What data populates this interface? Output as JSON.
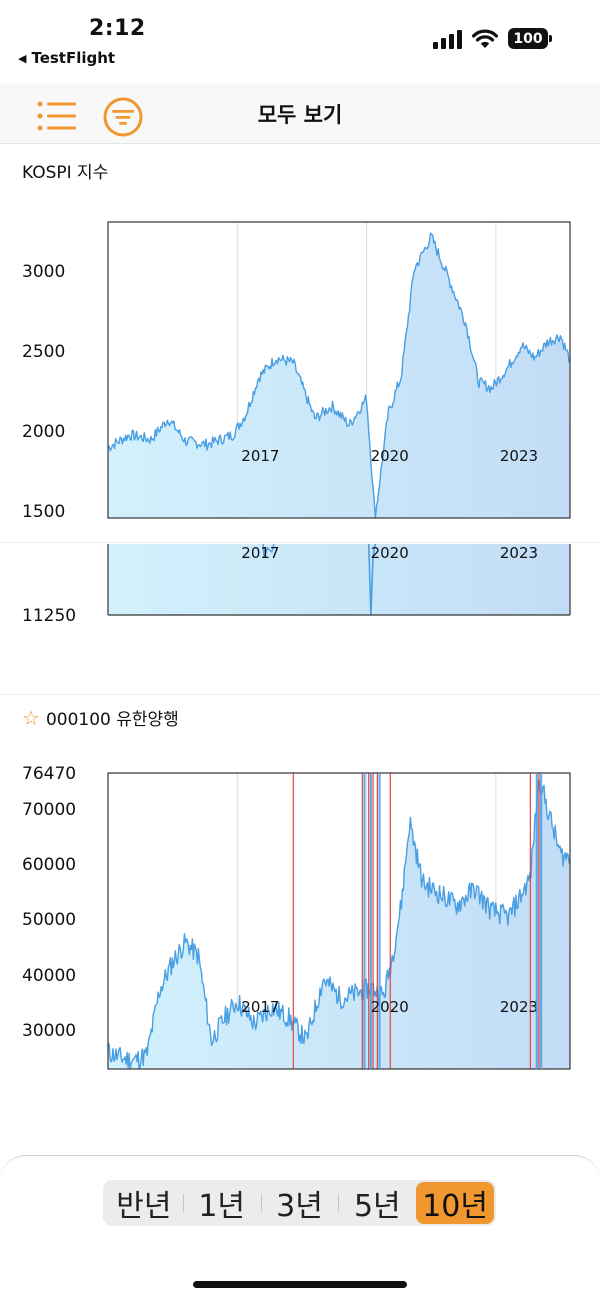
{
  "status": {
    "time": "2:12",
    "back_app": "TestFlight",
    "battery": "100"
  },
  "nav": {
    "title": "모두 보기",
    "list_icon": "list-icon",
    "filter_icon": "filter-icon"
  },
  "colors": {
    "accent": "#f0972f",
    "line": "#4a9fe3",
    "fill_start": "#d2f1fc",
    "fill_end": "#c2dcf6",
    "marker": "#e0473c"
  },
  "kospi": {
    "title": "KOSPI 지수",
    "y_labels": [
      "3000",
      "2500",
      "2000",
      "1500"
    ],
    "x_labels": [
      "2017",
      "2020",
      "2023"
    ]
  },
  "second_chart": {
    "y_labels": [
      "11250"
    ],
    "x_labels": [
      "2017",
      "2020",
      "2023"
    ]
  },
  "stock": {
    "title": "000100 유한양행",
    "y_labels": [
      "76470",
      "70000",
      "60000",
      "50000",
      "40000",
      "30000"
    ],
    "x_labels": [
      "2017",
      "2020",
      "2023"
    ]
  },
  "chart_data": [
    {
      "type": "area",
      "title": "KOSPI 지수",
      "ylim": [
        1500,
        3350
      ],
      "yticks": [
        1500,
        2000,
        2500,
        3000
      ],
      "x_tick_labels": [
        "2017",
        "2020",
        "2023"
      ],
      "x": [
        2014.0,
        2014.5,
        2015.0,
        2015.4,
        2015.8,
        2016.3,
        2016.9,
        2017.2,
        2017.5,
        2017.9,
        2018.3,
        2018.8,
        2019.2,
        2019.6,
        2020.0,
        2020.2,
        2020.5,
        2020.8,
        2021.1,
        2021.5,
        2021.9,
        2022.3,
        2022.6,
        2022.9,
        2023.3,
        2023.6,
        2023.9,
        2024.2,
        2024.5,
        2024.7
      ],
      "y": [
        1940,
        2020,
        1990,
        2120,
        1980,
        1960,
        2020,
        2150,
        2380,
        2500,
        2470,
        2120,
        2200,
        2080,
        2250,
        1500,
        2150,
        2380,
        3050,
        3260,
        3000,
        2720,
        2350,
        2310,
        2450,
        2580,
        2500,
        2600,
        2640,
        2500
      ]
    },
    {
      "type": "area",
      "yticks": [
        11250
      ],
      "x_tick_labels": [
        "2017",
        "2020",
        "2023"
      ]
    },
    {
      "type": "area",
      "title": "000100 유한양행",
      "ylim": [
        24000,
        76470
      ],
      "yticks": [
        30000,
        40000,
        50000,
        60000,
        70000,
        76470
      ],
      "x_tick_labels": [
        "2017",
        "2020",
        "2023"
      ],
      "x": [
        2014.0,
        2014.3,
        2014.6,
        2014.9,
        2015.2,
        2015.5,
        2015.8,
        2016.1,
        2016.4,
        2016.7,
        2017.0,
        2017.4,
        2017.8,
        2018.2,
        2018.6,
        2019.0,
        2019.4,
        2019.8,
        2020.1,
        2020.4,
        2020.6,
        2020.8,
        2021.0,
        2021.3,
        2021.7,
        2022.1,
        2022.5,
        2022.9,
        2023.3,
        2023.6,
        2023.8,
        2024.0,
        2024.2,
        2024.5,
        2024.7
      ],
      "y": [
        27000,
        26000,
        25500,
        26500,
        38000,
        43000,
        46500,
        44000,
        29000,
        33000,
        36000,
        32000,
        35000,
        33000,
        29000,
        40000,
        36500,
        37500,
        38500,
        37000,
        44000,
        53000,
        68000,
        57000,
        55000,
        53000,
        56000,
        52000,
        51000,
        55000,
        58000,
        76000,
        70000,
        62000,
        61500
      ],
      "event_markers_red_x": [
        2018.3,
        2019.9,
        2020.05,
        2020.15,
        2020.25,
        2020.55,
        2023.8,
        2024.0
      ]
    }
  ]
}
